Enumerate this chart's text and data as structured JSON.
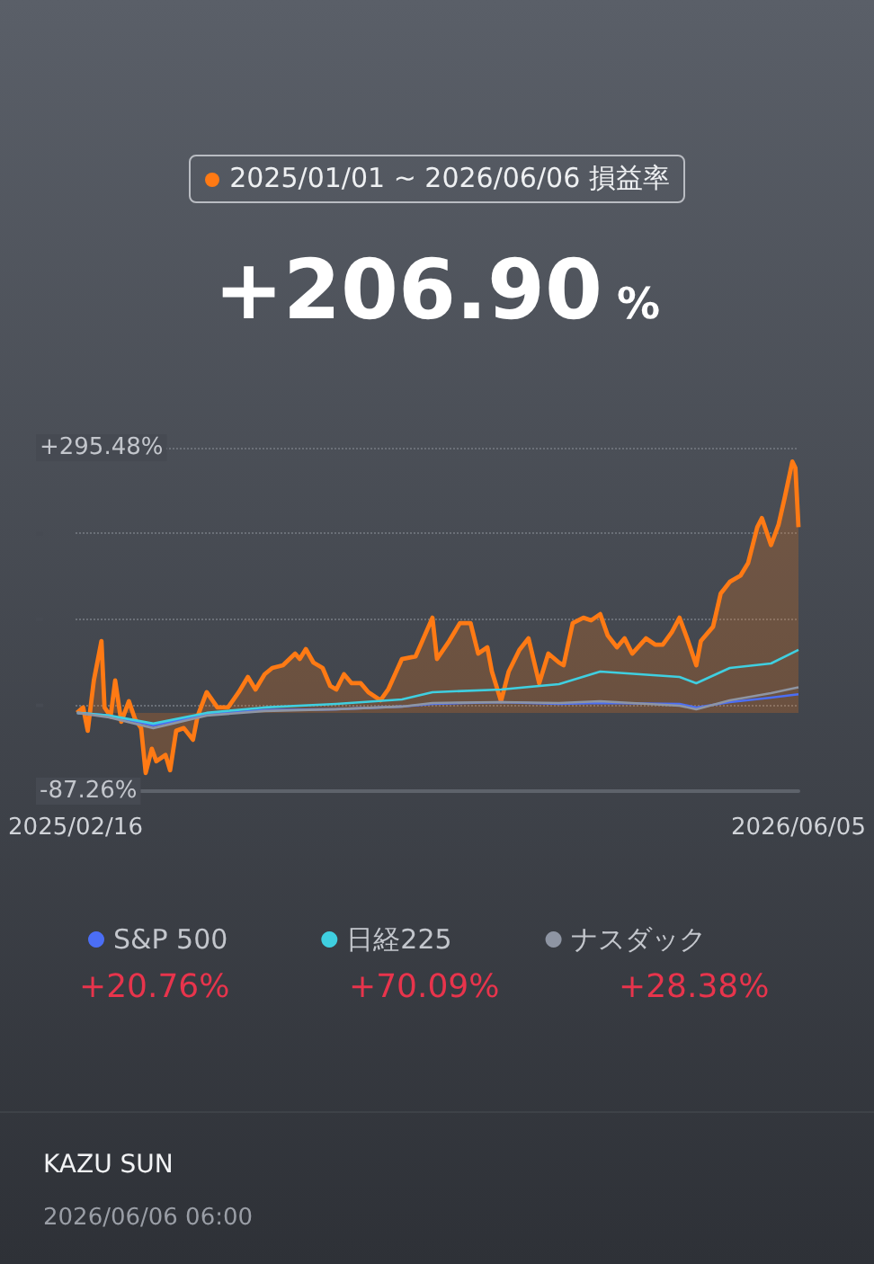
{
  "chart_data": {
    "type": "line",
    "title": "2025/01/01 ~ 2026/06/06 損益率",
    "subtitle": "+206.90 %",
    "xlim": [
      "2025-02-16",
      "2026-06-05"
    ],
    "xticks": [
      {
        "value": "2025-02-16",
        "label": "2025/02/16"
      },
      {
        "value": "2026-06-05",
        "label": "2026/06/05"
      }
    ],
    "ylim": [
      -87.26,
      295.48
    ],
    "yticks": [
      {
        "value": -87.26,
        "label": "-87.26%"
      },
      {
        "value": 8.42,
        "label": null
      },
      {
        "value": 104.1,
        "label": null
      },
      {
        "value": 199.8,
        "label": null
      },
      {
        "value": 295.48,
        "label": "+295.48%"
      }
    ],
    "grid": "y",
    "legend": "bottom",
    "marker": "none",
    "series": [
      {
        "type": "area",
        "color": "#ff7a14",
        "x": [
          "2025-02-17",
          "2025-02-21",
          "2025-02-24",
          "2025-02-28",
          "2025-03-05",
          "2025-03-07",
          "2025-03-11",
          "2025-03-14",
          "2025-03-18",
          "2025-03-23",
          "2025-03-27",
          "2025-03-31",
          "2025-04-03",
          "2025-04-07",
          "2025-04-10",
          "2025-04-16",
          "2025-04-19",
          "2025-04-23",
          "2025-04-28",
          "2025-05-04",
          "2025-05-07",
          "2025-05-13",
          "2025-05-20",
          "2025-05-27",
          "2025-06-03",
          "2025-06-09",
          "2025-06-14",
          "2025-06-20",
          "2025-06-25",
          "2025-07-02",
          "2025-07-10",
          "2025-07-13",
          "2025-07-17",
          "2025-07-22",
          "2025-07-28",
          "2025-08-02",
          "2025-08-06",
          "2025-08-11",
          "2025-08-16",
          "2025-08-22",
          "2025-08-27",
          "2025-09-04",
          "2025-09-09",
          "2025-09-18",
          "2025-09-27",
          "2025-10-08",
          "2025-10-11",
          "2025-10-19",
          "2025-10-26",
          "2025-11-02",
          "2025-11-07",
          "2025-11-13",
          "2025-11-16",
          "2025-11-22",
          "2025-11-27",
          "2025-12-04",
          "2025-12-10",
          "2025-12-17",
          "2025-12-23",
          "2025-12-30",
          "2026-01-02",
          "2026-01-08",
          "2026-01-15",
          "2026-01-20",
          "2026-01-26",
          "2026-01-31",
          "2026-02-06",
          "2026-02-11",
          "2026-02-16",
          "2026-02-25",
          "2026-03-03",
          "2026-03-08",
          "2026-03-14",
          "2026-03-19",
          "2026-03-24",
          "2026-03-30",
          "2026-04-02",
          "2026-04-10",
          "2026-04-15",
          "2026-04-21",
          "2026-04-28",
          "2026-05-03",
          "2026-05-09",
          "2026-05-12",
          "2026-05-18",
          "2026-05-23",
          "2026-05-27",
          "2026-06-01",
          "2026-06-03",
          "2026-06-05"
        ],
        "values": [
          0,
          6,
          -20,
          36,
          80,
          6,
          -4,
          36,
          -10,
          13,
          -7,
          -17,
          -67,
          -40,
          -54,
          -47,
          -64,
          -20,
          -17,
          -30,
          -4,
          23,
          6,
          6,
          23,
          40,
          26,
          43,
          50,
          53,
          66,
          60,
          71,
          56,
          50,
          30,
          26,
          43,
          33,
          33,
          23,
          14,
          26,
          60,
          63,
          106,
          60,
          80,
          100,
          100,
          66,
          73,
          46,
          13,
          46,
          70,
          83,
          33,
          66,
          56,
          53,
          100,
          106,
          103,
          110,
          86,
          73,
          83,
          66,
          83,
          76,
          76,
          90,
          106,
          83,
          53,
          80,
          96,
          133,
          146,
          153,
          167,
          207,
          217,
          187,
          210,
          240,
          280,
          273,
          206.9
        ]
      },
      {
        "name": "S&P 500",
        "color": "#4b6ef5",
        "x": [
          "2025-02-17",
          "2025-03-10",
          "2025-04-08",
          "2025-05-13",
          "2025-06-20",
          "2025-08-06",
          "2025-09-18",
          "2025-10-08",
          "2025-11-22",
          "2025-12-30",
          "2026-01-26",
          "2026-03-19",
          "2026-03-30",
          "2026-04-21",
          "2026-05-18",
          "2026-06-05"
        ],
        "values": [
          0,
          -3,
          -14,
          -2,
          3,
          4,
          7,
          10,
          12,
          10,
          11,
          10,
          6,
          12,
          17,
          20.76
        ]
      },
      {
        "name": "日経225",
        "color": "#3fcfe0",
        "x": [
          "2025-02-17",
          "2025-03-10",
          "2025-04-08",
          "2025-05-13",
          "2025-06-20",
          "2025-08-06",
          "2025-09-18",
          "2025-10-08",
          "2025-11-22",
          "2025-12-30",
          "2026-01-26",
          "2026-03-19",
          "2026-03-30",
          "2026-04-21",
          "2026-05-18",
          "2026-06-05"
        ],
        "values": [
          0,
          -3,
          -12,
          0,
          6,
          10,
          15,
          23,
          26,
          32,
          46,
          40,
          33,
          50,
          55,
          70.09
        ]
      },
      {
        "name": "ナスダック",
        "color": "#8e95a3",
        "x": [
          "2025-02-17",
          "2025-03-10",
          "2025-04-08",
          "2025-05-13",
          "2025-06-20",
          "2025-08-06",
          "2025-09-18",
          "2025-10-08",
          "2025-11-22",
          "2025-12-30",
          "2026-01-26",
          "2026-03-19",
          "2026-03-30",
          "2026-04-21",
          "2026-05-18",
          "2026-06-05"
        ],
        "values": [
          0,
          -5,
          -17,
          -3,
          2,
          4,
          7,
          11,
          12,
          11,
          13,
          8,
          4,
          14,
          22,
          28.38
        ]
      }
    ],
    "annotations": [
      "+20.76%",
      "+70.09%",
      "+28.38%",
      "KAZU SUN",
      "2026/06/06 06:00"
    ]
  }
}
